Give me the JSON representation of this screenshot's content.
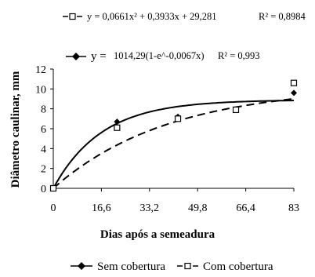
{
  "chart_data": {
    "type": "line",
    "xlabel": "Dias após a semeadura",
    "ylabel": "Diâmetro caulinar, mm",
    "xlim": [
      0,
      83
    ],
    "ylim": [
      0,
      12
    ],
    "x_ticks": [
      "0",
      "16,6",
      "33,2",
      "49,8",
      "66,4",
      "83"
    ],
    "y_ticks": [
      "0",
      "2",
      "4",
      "6",
      "8",
      "10",
      "12"
    ],
    "grid": false,
    "legend_position": "bottom",
    "series": [
      {
        "name": "Sem cobertura",
        "marker": "diamond",
        "line_style": "solid",
        "x": [
          0,
          22,
          43,
          63,
          83
        ],
        "y": [
          0,
          6.7,
          7.2,
          7.9,
          9.6
        ]
      },
      {
        "name": "Com cobertura",
        "marker": "square",
        "line_style": "dashed",
        "x": [
          0,
          22,
          43,
          63,
          83
        ],
        "y": [
          0,
          6.1,
          7.0,
          7.9,
          10.6
        ]
      }
    ],
    "annotations": {
      "com_equation": "y = 0,0661x² + 0,3933x + 29,281",
      "com_r2": "R² = 0,8984",
      "sem_equation_prefix": "y =",
      "sem_equation_body": "1014,29(1-e^-0,0067x)",
      "sem_r2": "R² = 0,993"
    }
  },
  "legend": {
    "sem_prefix": "—◆—",
    "sem_label": "Sem cobertura",
    "com_prefix": "- -□- -",
    "com_label": "Com cobertura"
  }
}
